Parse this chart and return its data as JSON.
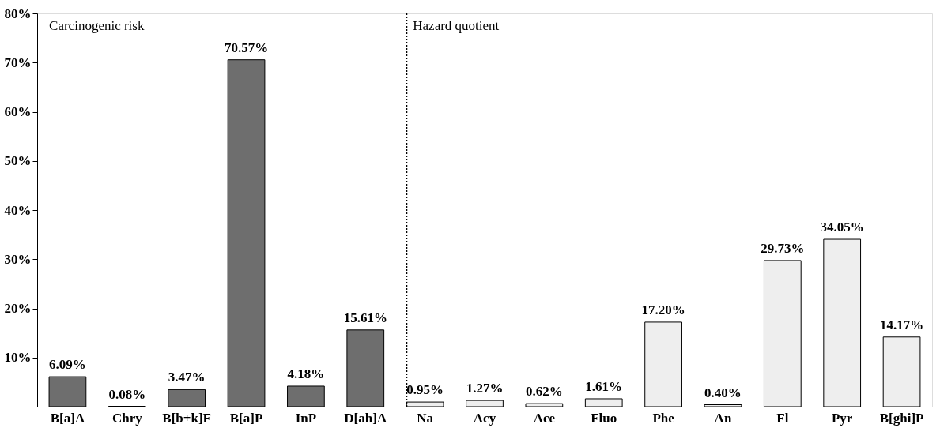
{
  "chart_data": {
    "type": "bar",
    "categories": [
      "B[a]A",
      "Chry",
      "B[b+k]F",
      "B[a]P",
      "InP",
      "D[ah]A",
      "Na",
      "Acy",
      "Ace",
      "Fluo",
      "Phe",
      "An",
      "Fl",
      "Pyr",
      "B[ghi]P"
    ],
    "values": [
      6.09,
      0.08,
      3.47,
      70.57,
      4.18,
      15.61,
      0.95,
      1.27,
      0.62,
      1.61,
      17.2,
      0.4,
      29.73,
      34.05,
      14.17
    ],
    "colors": [
      "#6e6e6e",
      "#6e6e6e",
      "#6e6e6e",
      "#6e6e6e",
      "#6e6e6e",
      "#6e6e6e",
      "#eeeeee",
      "#eeeeee",
      "#eeeeee",
      "#eeeeee",
      "#eeeeee",
      "#eeeeee",
      "#eeeeee",
      "#eeeeee",
      "#eeeeee"
    ],
    "value_labels": [
      "6.09%",
      "0.08%",
      "3.47%",
      "70.57%",
      "4.18%",
      "15.61%",
      "0.95%",
      "1.27%",
      "0.62%",
      "1.61%",
      "17.20%",
      "0.40%",
      "29.73%",
      "34.05%",
      "14.17%"
    ],
    "ylim": [
      0,
      80
    ],
    "yticks": [
      {
        "value": 10,
        "label": "10%"
      },
      {
        "value": 20,
        "label": "20%"
      },
      {
        "value": 30,
        "label": "30%"
      },
      {
        "value": 40,
        "label": "40%"
      },
      {
        "value": 50,
        "label": "50%"
      },
      {
        "value": 60,
        "label": "60%"
      },
      {
        "value": 70,
        "label": "70%"
      },
      {
        "value": 80,
        "label": "80%"
      }
    ],
    "ref_lines": [
      {
        "axis": "x",
        "value": "Na",
        "line_style": "dotted"
      }
    ],
    "annotations": [
      "Carcinogenic risk",
      "Hazard quotient"
    ],
    "grid": false
  }
}
